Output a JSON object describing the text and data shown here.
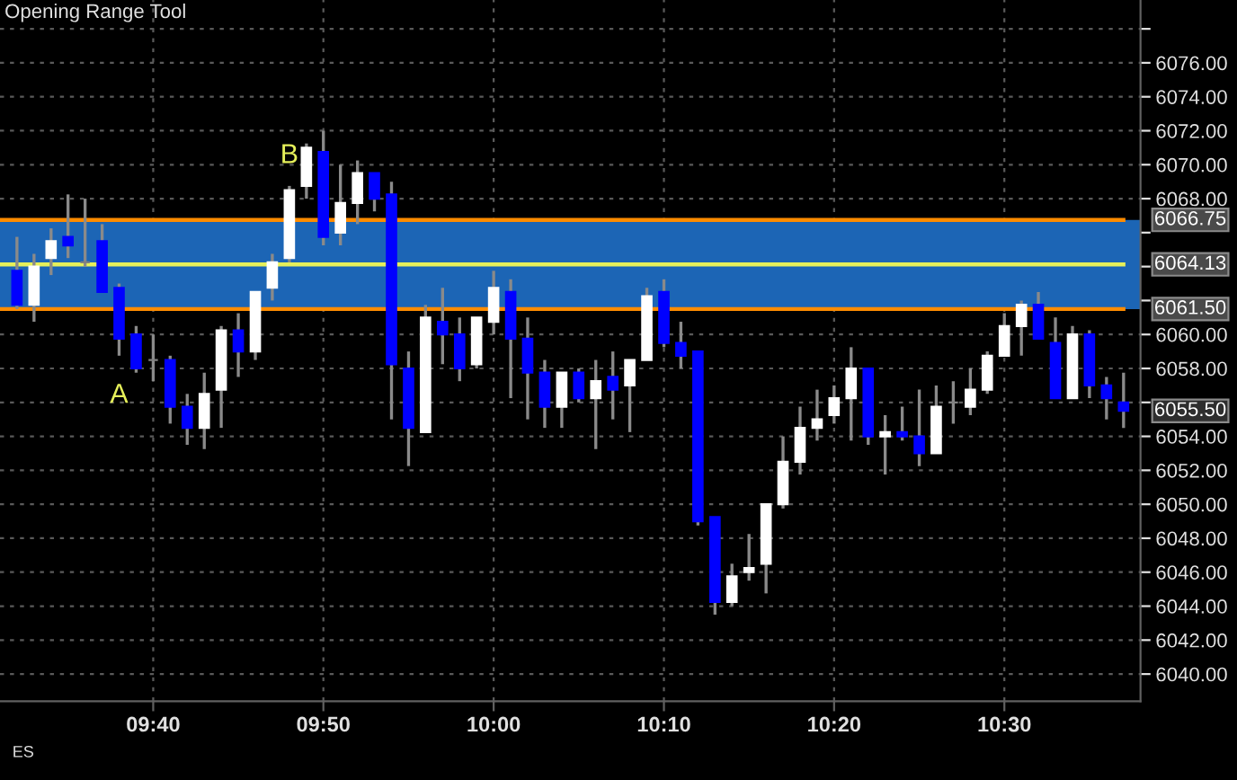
{
  "chart_data": {
    "type": "candlestick",
    "title": "Opening Range Tool",
    "x": [
      9.5333,
      9.55,
      9.5667,
      9.5833,
      9.6,
      9.6167,
      9.6333,
      9.65,
      9.6667,
      9.6833,
      9.7,
      9.7167,
      9.7333,
      9.75,
      9.7667,
      9.7833,
      9.8,
      9.8167,
      9.8333,
      9.85,
      9.8667,
      9.8833,
      9.9,
      9.9167,
      9.9333,
      9.95,
      9.9667,
      9.9833,
      10.0,
      10.0167,
      10.0333,
      10.05,
      10.0667,
      10.0833,
      10.1,
      10.1167,
      10.1333,
      10.15,
      10.1667,
      10.1833,
      10.2,
      10.2167,
      10.2333,
      10.25,
      10.2667,
      10.2833,
      10.3,
      10.3167,
      10.3333,
      10.35,
      10.3667,
      10.3833,
      10.4,
      10.4167,
      10.4333,
      10.45,
      10.4667,
      10.4833,
      10.5,
      10.5167,
      10.5333,
      10.55,
      10.5667,
      10.5833,
      10.6,
      10.6167
    ],
    "ohlc": [
      [
        6063.75,
        6065.75,
        6061.5,
        6061.75
      ],
      [
        6061.75,
        6064.75,
        6060.75,
        6064.0
      ],
      [
        6064.5,
        6066.25,
        6063.5,
        6065.5
      ],
      [
        6065.75,
        6068.25,
        6064.5,
        6065.25
      ],
      [
        6064.25,
        6068.0,
        6064.0,
        6064.25
      ],
      [
        6065.5,
        6066.5,
        6062.5,
        6062.5
      ],
      [
        6062.75,
        6063.0,
        6058.75,
        6059.75
      ],
      [
        6060.0,
        6060.5,
        6057.75,
        6058.0
      ],
      [
        6058.5,
        6060.0,
        6057.25,
        6058.5
      ],
      [
        6058.5,
        6058.75,
        6054.75,
        6055.75
      ],
      [
        6055.75,
        6056.5,
        6053.5,
        6054.5
      ],
      [
        6054.5,
        6057.75,
        6053.25,
        6056.5
      ],
      [
        6056.75,
        6060.5,
        6054.5,
        6060.25
      ],
      [
        6060.25,
        6061.25,
        6057.5,
        6059.0
      ],
      [
        6059.0,
        6062.5,
        6058.5,
        6062.5
      ],
      [
        6062.75,
        6064.75,
        6062.0,
        6064.25
      ],
      [
        6064.5,
        6068.75,
        6064.25,
        6068.5
      ],
      [
        6068.75,
        6071.25,
        6068.0,
        6071.0
      ],
      [
        6070.75,
        6072.0,
        6065.25,
        6065.75
      ],
      [
        6066.0,
        6070.0,
        6065.25,
        6067.75
      ],
      [
        6067.75,
        6070.25,
        6066.5,
        6069.5
      ],
      [
        6069.5,
        6069.5,
        6067.25,
        6068.0
      ],
      [
        6068.25,
        6069.0,
        6055.0,
        6058.25
      ],
      [
        6058.0,
        6059.0,
        6052.25,
        6054.5
      ],
      [
        6054.25,
        6061.75,
        6054.25,
        6061.0
      ],
      [
        6060.75,
        6062.75,
        6058.25,
        6060.0
      ],
      [
        6060.0,
        6061.0,
        6057.25,
        6058.0
      ],
      [
        6058.25,
        6061.0,
        6058.0,
        6061.0
      ],
      [
        6060.75,
        6063.75,
        6060.0,
        6062.75
      ],
      [
        6062.5,
        6063.25,
        6056.25,
        6059.75
      ],
      [
        6059.75,
        6061.0,
        6055.0,
        6057.75
      ],
      [
        6057.75,
        6058.5,
        6054.5,
        6055.75
      ],
      [
        6055.75,
        6057.75,
        6054.5,
        6057.75
      ],
      [
        6057.75,
        6058.0,
        6056.0,
        6056.25
      ],
      [
        6056.25,
        6058.5,
        6053.25,
        6057.25
      ],
      [
        6057.5,
        6059.0,
        6055.0,
        6056.75
      ],
      [
        6057.0,
        6058.5,
        6054.25,
        6058.5
      ],
      [
        6058.5,
        6062.75,
        6058.5,
        6062.25
      ],
      [
        6062.5,
        6063.25,
        6059.25,
        6059.5
      ],
      [
        6059.5,
        6060.75,
        6058.0,
        6058.75
      ],
      [
        6059.0,
        6059.0,
        6048.75,
        6049.0
      ],
      [
        6049.25,
        6049.25,
        6043.5,
        6044.25
      ],
      [
        6044.25,
        6046.5,
        6044.0,
        6045.75
      ],
      [
        6046.0,
        6048.25,
        6045.5,
        6046.25
      ],
      [
        6046.5,
        6050.0,
        6044.75,
        6050.0
      ],
      [
        6050.0,
        6054.0,
        6049.75,
        6052.5
      ],
      [
        6052.5,
        6055.75,
        6051.75,
        6054.5
      ],
      [
        6054.5,
        6056.75,
        6053.75,
        6055.0
      ],
      [
        6055.25,
        6057.0,
        6054.75,
        6056.25
      ],
      [
        6056.25,
        6059.25,
        6053.75,
        6058.0
      ],
      [
        6058.0,
        6058.0,
        6053.5,
        6054.0
      ],
      [
        6054.0,
        6055.25,
        6051.75,
        6054.25
      ],
      [
        6054.25,
        6055.75,
        6053.75,
        6054.0
      ],
      [
        6054.0,
        6056.75,
        6052.25,
        6053.0
      ],
      [
        6053.0,
        6057.0,
        6053.0,
        6055.75
      ],
      [
        6056.0,
        6057.25,
        6054.75,
        6056.0
      ],
      [
        6055.75,
        6058.0,
        6055.25,
        6056.75
      ],
      [
        6056.75,
        6059.0,
        6056.5,
        6058.75
      ],
      [
        6058.75,
        6061.25,
        6058.75,
        6060.5
      ],
      [
        6060.5,
        6062.0,
        6058.75,
        6061.75
      ],
      [
        6061.75,
        6062.5,
        6059.75,
        6059.75
      ],
      [
        6059.5,
        6061.0,
        6056.25,
        6056.25
      ],
      [
        6056.25,
        6060.5,
        6056.25,
        6060.0
      ],
      [
        6060.0,
        6060.25,
        6056.25,
        6057.0
      ],
      [
        6057.0,
        6057.5,
        6055.0,
        6056.25
      ],
      [
        6056.0,
        6057.75,
        6054.5,
        6055.5
      ]
    ],
    "colors": [
      "#0000ff",
      "#ffffff",
      "#ffffff",
      "#0000ff",
      "#808080",
      "#0000ff",
      "#0000ff",
      "#0000ff",
      "#808080",
      "#0000ff",
      "#0000ff",
      "#ffffff",
      "#ffffff",
      "#0000ff",
      "#ffffff",
      "#ffffff",
      "#ffffff",
      "#ffffff",
      "#0000ff",
      "#ffffff",
      "#ffffff",
      "#0000ff",
      "#0000ff",
      "#0000ff",
      "#ffffff",
      "#0000ff",
      "#0000ff",
      "#ffffff",
      "#ffffff",
      "#0000ff",
      "#0000ff",
      "#0000ff",
      "#ffffff",
      "#0000ff",
      "#ffffff",
      "#0000ff",
      "#ffffff",
      "#ffffff",
      "#0000ff",
      "#0000ff",
      "#0000ff",
      "#0000ff",
      "#ffffff",
      "#ffffff",
      "#ffffff",
      "#ffffff",
      "#ffffff",
      "#ffffff",
      "#ffffff",
      "#ffffff",
      "#0000ff",
      "#ffffff",
      "#0000ff",
      "#0000ff",
      "#ffffff",
      "#808080",
      "#ffffff",
      "#ffffff",
      "#ffffff",
      "#ffffff",
      "#0000ff",
      "#0000ff",
      "#ffffff",
      "#0000ff",
      "#0000ff",
      "#0000ff"
    ],
    "xlim": [
      9.5167,
      10.6333
    ],
    "xticks": [
      {
        "value": 9.6667,
        "label": "09:40"
      },
      {
        "value": 9.8333,
        "label": "09:50"
      },
      {
        "value": 10.0,
        "label": "10:00"
      },
      {
        "value": 10.1667,
        "label": "10:10"
      },
      {
        "value": 10.3333,
        "label": "10:20"
      },
      {
        "value": 10.5,
        "label": "10:30"
      }
    ],
    "ylim": [
      6038.4,
      6079.7
    ],
    "yticks": [
      {
        "value": 6040,
        "label": "6040.00"
      },
      {
        "value": 6042,
        "label": "6042.00"
      },
      {
        "value": 6044,
        "label": "6044.00"
      },
      {
        "value": 6046,
        "label": "6046.00"
      },
      {
        "value": 6048,
        "label": "6048.00"
      },
      {
        "value": 6050,
        "label": "6050.00"
      },
      {
        "value": 6052,
        "label": "6052.00"
      },
      {
        "value": 6054,
        "label": "6054.00"
      },
      {
        "value": 6056,
        "label": null
      },
      {
        "value": 6058,
        "label": "6058.00"
      },
      {
        "value": 6060,
        "label": "6060.00"
      },
      {
        "value": 6062,
        "label": null
      },
      {
        "value": 6064,
        "label": null
      },
      {
        "value": 6066,
        "label": null
      },
      {
        "value": 6068,
        "label": "6068.00"
      },
      {
        "value": 6070,
        "label": "6070.00"
      },
      {
        "value": 6072,
        "label": "6072.00"
      },
      {
        "value": 6074,
        "label": "6074.00"
      },
      {
        "value": 6076,
        "label": "6076.00"
      },
      {
        "value": 6078,
        "label": null
      }
    ],
    "grid": true,
    "bands": [
      {
        "axis": "y",
        "from": 6061.5,
        "to": 6066.75,
        "color": "#1c65b5"
      }
    ],
    "ref_lines": [
      {
        "axis": "y",
        "value": 6066.75,
        "label": "6066.75",
        "color": "#ff8c00",
        "line_style": "solid"
      },
      {
        "axis": "y",
        "value": 6064.13,
        "label": "6064.13",
        "color": "#e6f05a",
        "line_style": "solid"
      },
      {
        "axis": "y",
        "value": 6061.5,
        "label": "6061.50",
        "color": "#ff8c00",
        "line_style": "solid"
      }
    ],
    "annotations": [
      {
        "text": "A",
        "x": 9.6333,
        "y": 6058.75
      },
      {
        "text": "B",
        "x": 9.8,
        "y": 6068.75
      },
      {
        "text": "6055.50",
        "x": 10.6167,
        "y": 6055.5
      },
      "ES"
    ]
  }
}
